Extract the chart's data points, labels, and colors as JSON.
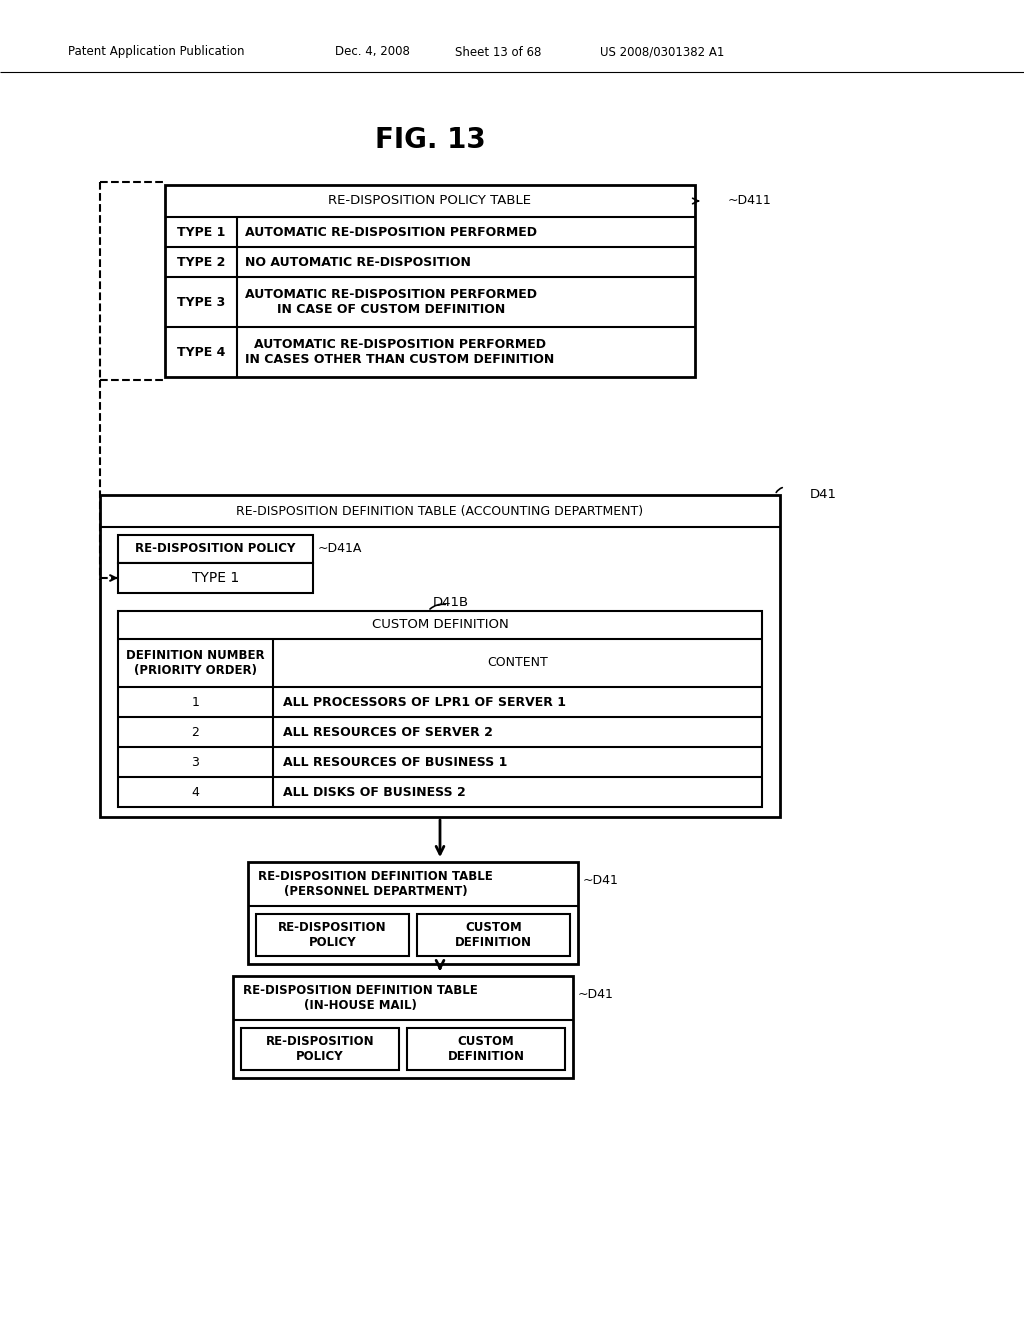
{
  "header_left": "Patent Application Publication",
  "header_date": "Dec. 4, 2008",
  "header_sheet": "Sheet 13 of 68",
  "header_patent": "US 2008/0301382 A1",
  "fig_title": "FIG. 13",
  "bg_color": "#ffffff",
  "policy_table": {
    "title": "RE-DISPOSITION POLICY TABLE",
    "label": "~D411",
    "rows": [
      [
        "TYPE 1",
        "AUTOMATIC RE-DISPOSITION PERFORMED"
      ],
      [
        "TYPE 2",
        "NO AUTOMATIC RE-DISPOSITION"
      ],
      [
        "TYPE 3",
        "AUTOMATIC RE-DISPOSITION PERFORMED\nIN CASE OF CUSTOM DEFINITION"
      ],
      [
        "TYPE 4",
        "AUTOMATIC RE-DISPOSITION PERFORMED\nIN CASES OTHER THAN CUSTOM DEFINITION"
      ]
    ]
  },
  "accounting_table": {
    "title": "RE-DISPOSITION DEFINITION TABLE (ACCOUNTING DEPARTMENT)",
    "label": "D41",
    "policy_box_text": "RE-DISPOSITION POLICY",
    "policy_label": "~D41A",
    "policy_value": "TYPE 1",
    "custom_label": "D41B",
    "custom_title": "CUSTOM DEFINITION",
    "col1_header": "DEFINITION NUMBER\n(PRIORITY ORDER)",
    "col2_header": "CONTENT",
    "rows": [
      [
        "1",
        "ALL PROCESSORS OF LPR1 OF SERVER 1"
      ],
      [
        "2",
        "ALL RESOURCES OF SERVER 2"
      ],
      [
        "3",
        "ALL RESOURCES OF BUSINESS 1"
      ],
      [
        "4",
        "ALL DISKS OF BUSINESS 2"
      ]
    ]
  },
  "personnel_table": {
    "title": "RE-DISPOSITION DEFINITION TABLE\n(PERSONNEL DEPARTMENT)",
    "label": "~D41",
    "box1_text": "RE-DISPOSITION\nPOLICY",
    "box2_text": "CUSTOM\nDEFINITION"
  },
  "inhouse_table": {
    "title": "RE-DISPOSITION DEFINITION TABLE\n(IN-HOUSE MAIL)",
    "label": "~D41",
    "box1_text": "RE-DISPOSITION\nPOLICY",
    "box2_text": "CUSTOM\nDEFINITION"
  }
}
